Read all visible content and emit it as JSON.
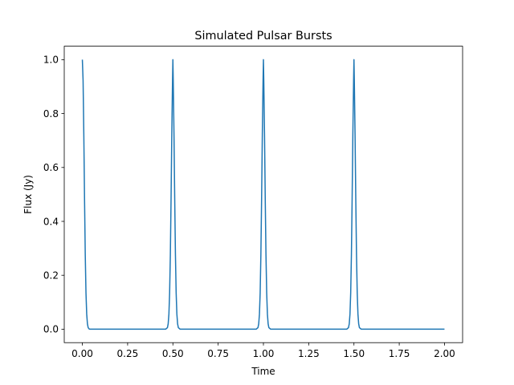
{
  "chart_data": {
    "type": "line",
    "title": "Simulated Pulsar Bursts",
    "xlabel": "Time",
    "ylabel": "Flux (Jy)",
    "xlim": [
      -0.1,
      2.1
    ],
    "ylim": [
      -0.05,
      1.05
    ],
    "xticks": [
      "0.00",
      "0.25",
      "0.50",
      "0.75",
      "1.00",
      "1.25",
      "1.50",
      "1.75",
      "2.00"
    ],
    "yticks": [
      "0.0",
      "0.2",
      "0.4",
      "0.6",
      "0.8",
      "1.0"
    ],
    "grid": false,
    "colors": {
      "line": "#1f77b4"
    },
    "series": [
      {
        "x": [
          0.0,
          0.004,
          0.008,
          0.012,
          0.016,
          0.02,
          0.024,
          0.028,
          0.032,
          0.036,
          0.04,
          0.05,
          0.46,
          0.47,
          0.474,
          0.478,
          0.482,
          0.486,
          0.49,
          0.494,
          0.498,
          0.5,
          0.502,
          0.506,
          0.51,
          0.514,
          0.518,
          0.522,
          0.526,
          0.53,
          0.54,
          0.96,
          0.97,
          0.974,
          0.978,
          0.982,
          0.986,
          0.99,
          0.994,
          0.998,
          1.0,
          1.002,
          1.006,
          1.01,
          1.014,
          1.018,
          1.022,
          1.026,
          1.03,
          1.04,
          1.46,
          1.47,
          1.474,
          1.478,
          1.482,
          1.486,
          1.49,
          1.494,
          1.498,
          1.5,
          1.502,
          1.506,
          1.51,
          1.514,
          1.518,
          1.522,
          1.526,
          1.53,
          1.54,
          2.0
        ],
        "y": [
          1.0,
          0.923,
          0.726,
          0.487,
          0.278,
          0.135,
          0.056,
          0.02,
          0.006,
          0.002,
          0.0,
          0.0,
          0.0,
          0.006,
          0.02,
          0.056,
          0.135,
          0.278,
          0.487,
          0.726,
          0.923,
          1.0,
          0.923,
          0.726,
          0.487,
          0.278,
          0.135,
          0.056,
          0.02,
          0.006,
          0.0,
          0.0,
          0.006,
          0.02,
          0.056,
          0.135,
          0.278,
          0.487,
          0.726,
          0.923,
          1.0,
          0.923,
          0.726,
          0.487,
          0.278,
          0.135,
          0.056,
          0.02,
          0.006,
          0.0,
          0.0,
          0.006,
          0.02,
          0.056,
          0.135,
          0.278,
          0.487,
          0.726,
          0.923,
          1.0,
          0.923,
          0.726,
          0.487,
          0.278,
          0.135,
          0.056,
          0.02,
          0.006,
          0.0,
          0.0
        ]
      }
    ]
  }
}
